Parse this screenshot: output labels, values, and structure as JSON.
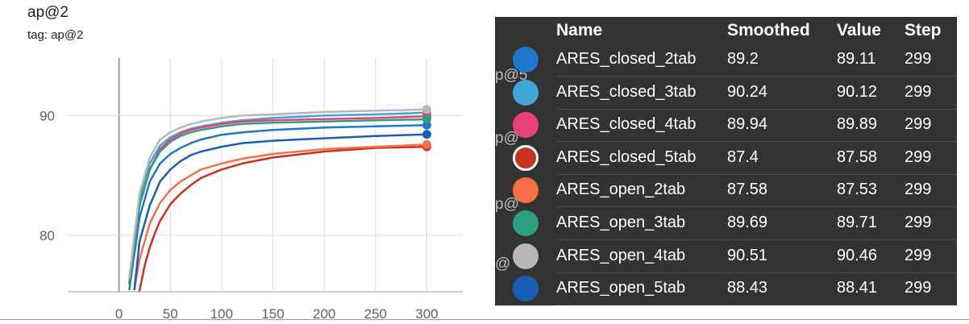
{
  "chart_data": {
    "type": "line",
    "title": "ap@2",
    "subtitle": "tag: ap@2",
    "xlabel": "",
    "ylabel": "",
    "xlim": [
      -50,
      335
    ],
    "ylim": [
      75.3,
      94.8
    ],
    "x_ticks": [
      0,
      50,
      100,
      150,
      200,
      250,
      300
    ],
    "y_ticks": [
      80,
      90
    ],
    "grid": true,
    "series": [
      {
        "name": "ARES_closed_2tab",
        "color": "#1f77c9",
        "x": [
          10,
          20,
          30,
          40,
          50,
          60,
          70,
          80,
          100,
          120,
          150,
          200,
          250,
          300
        ],
        "values": [
          75.5,
          81.5,
          84.5,
          86,
          86.8,
          87.3,
          87.7,
          88,
          88.4,
          88.6,
          88.8,
          89,
          89.1,
          89.2
        ]
      },
      {
        "name": "ARES_closed_3tab",
        "color": "#42a5d8",
        "x": [
          10,
          20,
          30,
          40,
          50,
          60,
          70,
          80,
          100,
          120,
          150,
          200,
          250,
          300
        ],
        "values": [
          76,
          83,
          86,
          87.5,
          88.2,
          88.6,
          88.9,
          89.1,
          89.4,
          89.6,
          89.8,
          90,
          90.1,
          90.24
        ]
      },
      {
        "name": "ARES_closed_4tab",
        "color": "#e8407a",
        "x": [
          10,
          20,
          30,
          40,
          50,
          60,
          70,
          80,
          100,
          120,
          150,
          200,
          250,
          300
        ],
        "values": [
          76,
          82.5,
          85.5,
          87.2,
          88,
          88.5,
          88.8,
          89,
          89.3,
          89.5,
          89.6,
          89.7,
          89.8,
          89.94
        ]
      },
      {
        "name": "ARES_closed_5tab",
        "color": "#c8321d",
        "x": [
          20,
          25,
          30,
          35,
          40,
          50,
          60,
          70,
          80,
          100,
          120,
          150,
          200,
          250,
          300
        ],
        "values": [
          75.4,
          77.5,
          79,
          80.2,
          81.2,
          82.6,
          83.5,
          84.2,
          84.8,
          85.5,
          86,
          86.5,
          87,
          87.3,
          87.4
        ]
      },
      {
        "name": "ARES_open_2tab",
        "color": "#f57048",
        "x": [
          15,
          20,
          30,
          40,
          50,
          60,
          70,
          80,
          100,
          120,
          150,
          200,
          250,
          300
        ],
        "values": [
          75.5,
          78,
          81,
          82.7,
          83.8,
          84.5,
          85,
          85.5,
          86,
          86.4,
          86.8,
          87.2,
          87.4,
          87.58
        ]
      },
      {
        "name": "ARES_open_3tab",
        "color": "#2e9e82",
        "x": [
          10,
          20,
          30,
          40,
          50,
          60,
          70,
          80,
          100,
          120,
          150,
          200,
          250,
          300
        ],
        "values": [
          76,
          82.5,
          85.5,
          87,
          87.8,
          88.3,
          88.6,
          88.8,
          89.1,
          89.3,
          89.4,
          89.5,
          89.6,
          89.69
        ]
      },
      {
        "name": "ARES_open_4tab",
        "color": "#b8b8b8",
        "x": [
          10,
          20,
          30,
          40,
          50,
          60,
          70,
          80,
          100,
          120,
          150,
          200,
          250,
          300
        ],
        "values": [
          76.5,
          83.5,
          86.5,
          88,
          88.6,
          89,
          89.3,
          89.5,
          89.8,
          90,
          90.1,
          90.3,
          90.4,
          90.51
        ]
      },
      {
        "name": "ARES_open_5tab",
        "color": "#1a5fb4",
        "x": [
          15,
          20,
          30,
          40,
          50,
          60,
          70,
          80,
          100,
          120,
          150,
          200,
          250,
          300
        ],
        "values": [
          75.5,
          79.5,
          82.5,
          84.5,
          85.5,
          86.2,
          86.7,
          87,
          87.4,
          87.7,
          87.9,
          88.1,
          88.3,
          88.43
        ]
      }
    ]
  },
  "tooltip": {
    "headers": {
      "name": "Name",
      "smoothed": "Smoothed",
      "value": "Value",
      "step": "Step"
    },
    "ghost_labels": [
      "p@5",
      "p@",
      "p@",
      "@"
    ],
    "rows": [
      {
        "name": "ARES_closed_2tab",
        "smoothed": "89.2",
        "value": "89.11",
        "step": "299",
        "color": "#1f77c9",
        "selected": false
      },
      {
        "name": "ARES_closed_3tab",
        "smoothed": "90.24",
        "value": "90.12",
        "step": "299",
        "color": "#42a5d8",
        "selected": false
      },
      {
        "name": "ARES_closed_4tab",
        "smoothed": "89.94",
        "value": "89.89",
        "step": "299",
        "color": "#e8407a",
        "selected": false
      },
      {
        "name": "ARES_closed_5tab",
        "smoothed": "87.4",
        "value": "87.58",
        "step": "299",
        "color": "#c8321d",
        "selected": true
      },
      {
        "name": "ARES_open_2tab",
        "smoothed": "87.58",
        "value": "87.53",
        "step": "299",
        "color": "#f57048",
        "selected": false
      },
      {
        "name": "ARES_open_3tab",
        "smoothed": "89.69",
        "value": "89.71",
        "step": "299",
        "color": "#2e9e82",
        "selected": false
      },
      {
        "name": "ARES_open_4tab",
        "smoothed": "90.51",
        "value": "90.46",
        "step": "299",
        "color": "#b8b8b8",
        "selected": false
      },
      {
        "name": "ARES_open_5tab",
        "smoothed": "88.43",
        "value": "88.41",
        "step": "299",
        "color": "#1a5fb4",
        "selected": false
      }
    ]
  }
}
